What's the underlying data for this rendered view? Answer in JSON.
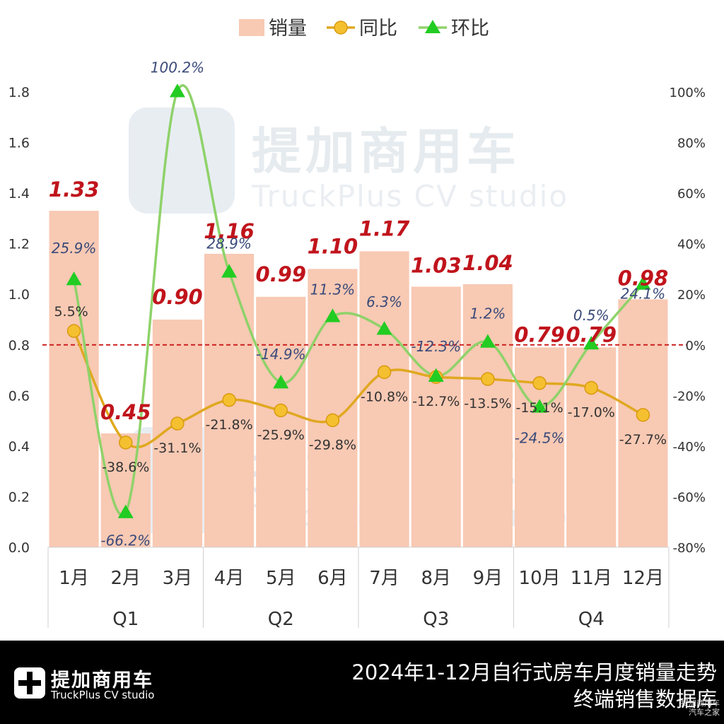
{
  "legend": {
    "sales": "销量",
    "yoy": "同比",
    "mom": "环比"
  },
  "watermark": {
    "cn": "提加商用车",
    "en": "TruckPlus CV studio"
  },
  "footer": {
    "brand_cn": "提加商用车",
    "brand_en": "TruckPlus CV studio",
    "title_line1": "2024年1-12月自行式房车月度销量走势",
    "title_line2": "终端销售数据库",
    "corner_line1": "提加商用车",
    "corner_line2": "汽车之家"
  },
  "colors": {
    "bar": "#f8c9b3",
    "yoy": "#e0a820",
    "yoy_marker": "#f5c030",
    "mom": "#8fd26a",
    "mom_marker": "#22cc22",
    "sales_label": "#c0141c",
    "pct_label": "#3a4a7a",
    "zero_line": "#cc1f1f"
  },
  "chart_data": {
    "type": "bar",
    "categories": [
      "1月",
      "2月",
      "3月",
      "4月",
      "5月",
      "6月",
      "7月",
      "8月",
      "9月",
      "10月",
      "11月",
      "12月"
    ],
    "quarters": [
      "Q1",
      "Q2",
      "Q3",
      "Q4"
    ],
    "series": [
      {
        "name": "销量",
        "type": "bar",
        "axis": "left",
        "values": [
          1.33,
          0.45,
          0.9,
          1.16,
          0.99,
          1.1,
          1.17,
          1.03,
          1.04,
          0.79,
          0.79,
          0.98
        ],
        "labels": [
          "1.33",
          "0.45",
          "0.90",
          "1.16",
          "0.99",
          "1.10",
          "1.17",
          "1.03",
          "1.04",
          "0.79",
          "0.79",
          "0.98"
        ]
      },
      {
        "name": "同比",
        "type": "line",
        "axis": "right",
        "values": [
          5.5,
          -38.6,
          -31.1,
          -21.8,
          -25.9,
          -29.8,
          -10.8,
          -12.7,
          -13.5,
          -15.1,
          -17.0,
          -27.7
        ],
        "labels": [
          "5.5%",
          "-38.6%",
          "-31.1%",
          "-21.8%",
          "-25.9%",
          "-29.8%",
          "-10.8%",
          "-12.7%",
          "-13.5%",
          "-15.1%",
          "-17.0%",
          "-27.7%"
        ]
      },
      {
        "name": "环比",
        "type": "line",
        "axis": "right",
        "values": [
          25.9,
          -66.2,
          100.2,
          28.9,
          -14.9,
          11.3,
          6.3,
          -12.3,
          1.2,
          -24.5,
          0.5,
          24.1
        ],
        "labels": [
          "25.9%",
          "-66.2%",
          "100.2%",
          "28.9%",
          "-14.9%",
          "11.3%",
          "6.3%",
          "-12.3%",
          "1.2%",
          "-24.5%",
          "0.5%",
          "24.1%"
        ]
      }
    ],
    "y_left": {
      "min": 0,
      "max": 1.8,
      "ticks": [
        "0.0",
        "0.2",
        "0.4",
        "0.6",
        "0.8",
        "1.0",
        "1.2",
        "1.4",
        "1.6",
        "1.8"
      ]
    },
    "y_right": {
      "min": -80,
      "max": 100,
      "ticks": [
        "-80%",
        "-60%",
        "-40%",
        "-20%",
        "0%",
        "20%",
        "40%",
        "60%",
        "80%",
        "100%"
      ]
    },
    "grid": false,
    "legend_position": "top"
  }
}
